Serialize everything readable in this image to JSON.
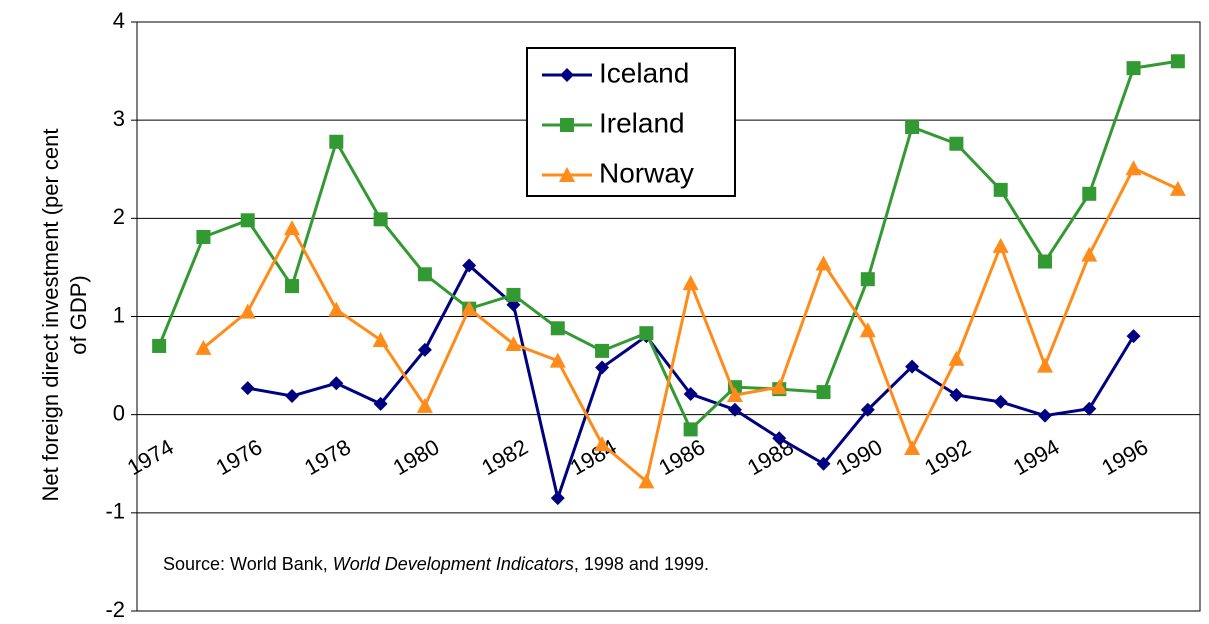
{
  "chart_data": {
    "type": "line",
    "y_label_lines": [
      "Net foreign direct investment  (per cent",
      "of GDP)"
    ],
    "annotation": [
      "Source: World Bank, ",
      "World Development Indicators",
      ", 1998 and 1999."
    ],
    "categories": [
      "1974",
      null,
      "1976",
      null,
      "1978",
      null,
      "1980",
      null,
      "1982",
      null,
      "1984",
      null,
      "1986",
      null,
      "1988",
      null,
      "1990",
      null,
      "1992",
      null,
      "1994",
      null,
      "1996",
      null
    ],
    "series": [
      {
        "name": "Iceland",
        "color": "#000080",
        "marker": "diamond",
        "values": [
          null,
          null,
          0.27,
          0.19,
          0.32,
          0.11,
          0.66,
          1.52,
          1.12,
          -0.85,
          0.48,
          0.8,
          0.21,
          0.05,
          -0.24,
          -0.5,
          0.05,
          0.49,
          0.2,
          0.13,
          -0.01,
          0.06,
          0.8,
          null
        ]
      },
      {
        "name": "Ireland",
        "color": "#339933",
        "marker": "square",
        "values": [
          0.7,
          1.81,
          1.98,
          1.31,
          2.78,
          1.99,
          1.43,
          1.08,
          1.22,
          0.88,
          0.65,
          0.83,
          -0.15,
          0.28,
          0.26,
          0.23,
          1.38,
          2.93,
          2.76,
          2.29,
          1.56,
          2.25,
          3.53,
          3.6
        ]
      },
      {
        "name": "Norway",
        "color": "#ff8c1a",
        "marker": "triangle",
        "values": [
          null,
          0.68,
          1.05,
          1.9,
          1.07,
          0.76,
          0.09,
          1.08,
          0.72,
          0.55,
          -0.3,
          -0.68,
          1.34,
          0.2,
          0.28,
          1.54,
          0.86,
          -0.34,
          0.57,
          1.72,
          0.5,
          1.63,
          2.51,
          2.3
        ]
      }
    ],
    "ylim": [
      -2,
      4
    ],
    "yticks": [
      -2,
      -1,
      0,
      1,
      2,
      3,
      4
    ],
    "grid": true
  }
}
